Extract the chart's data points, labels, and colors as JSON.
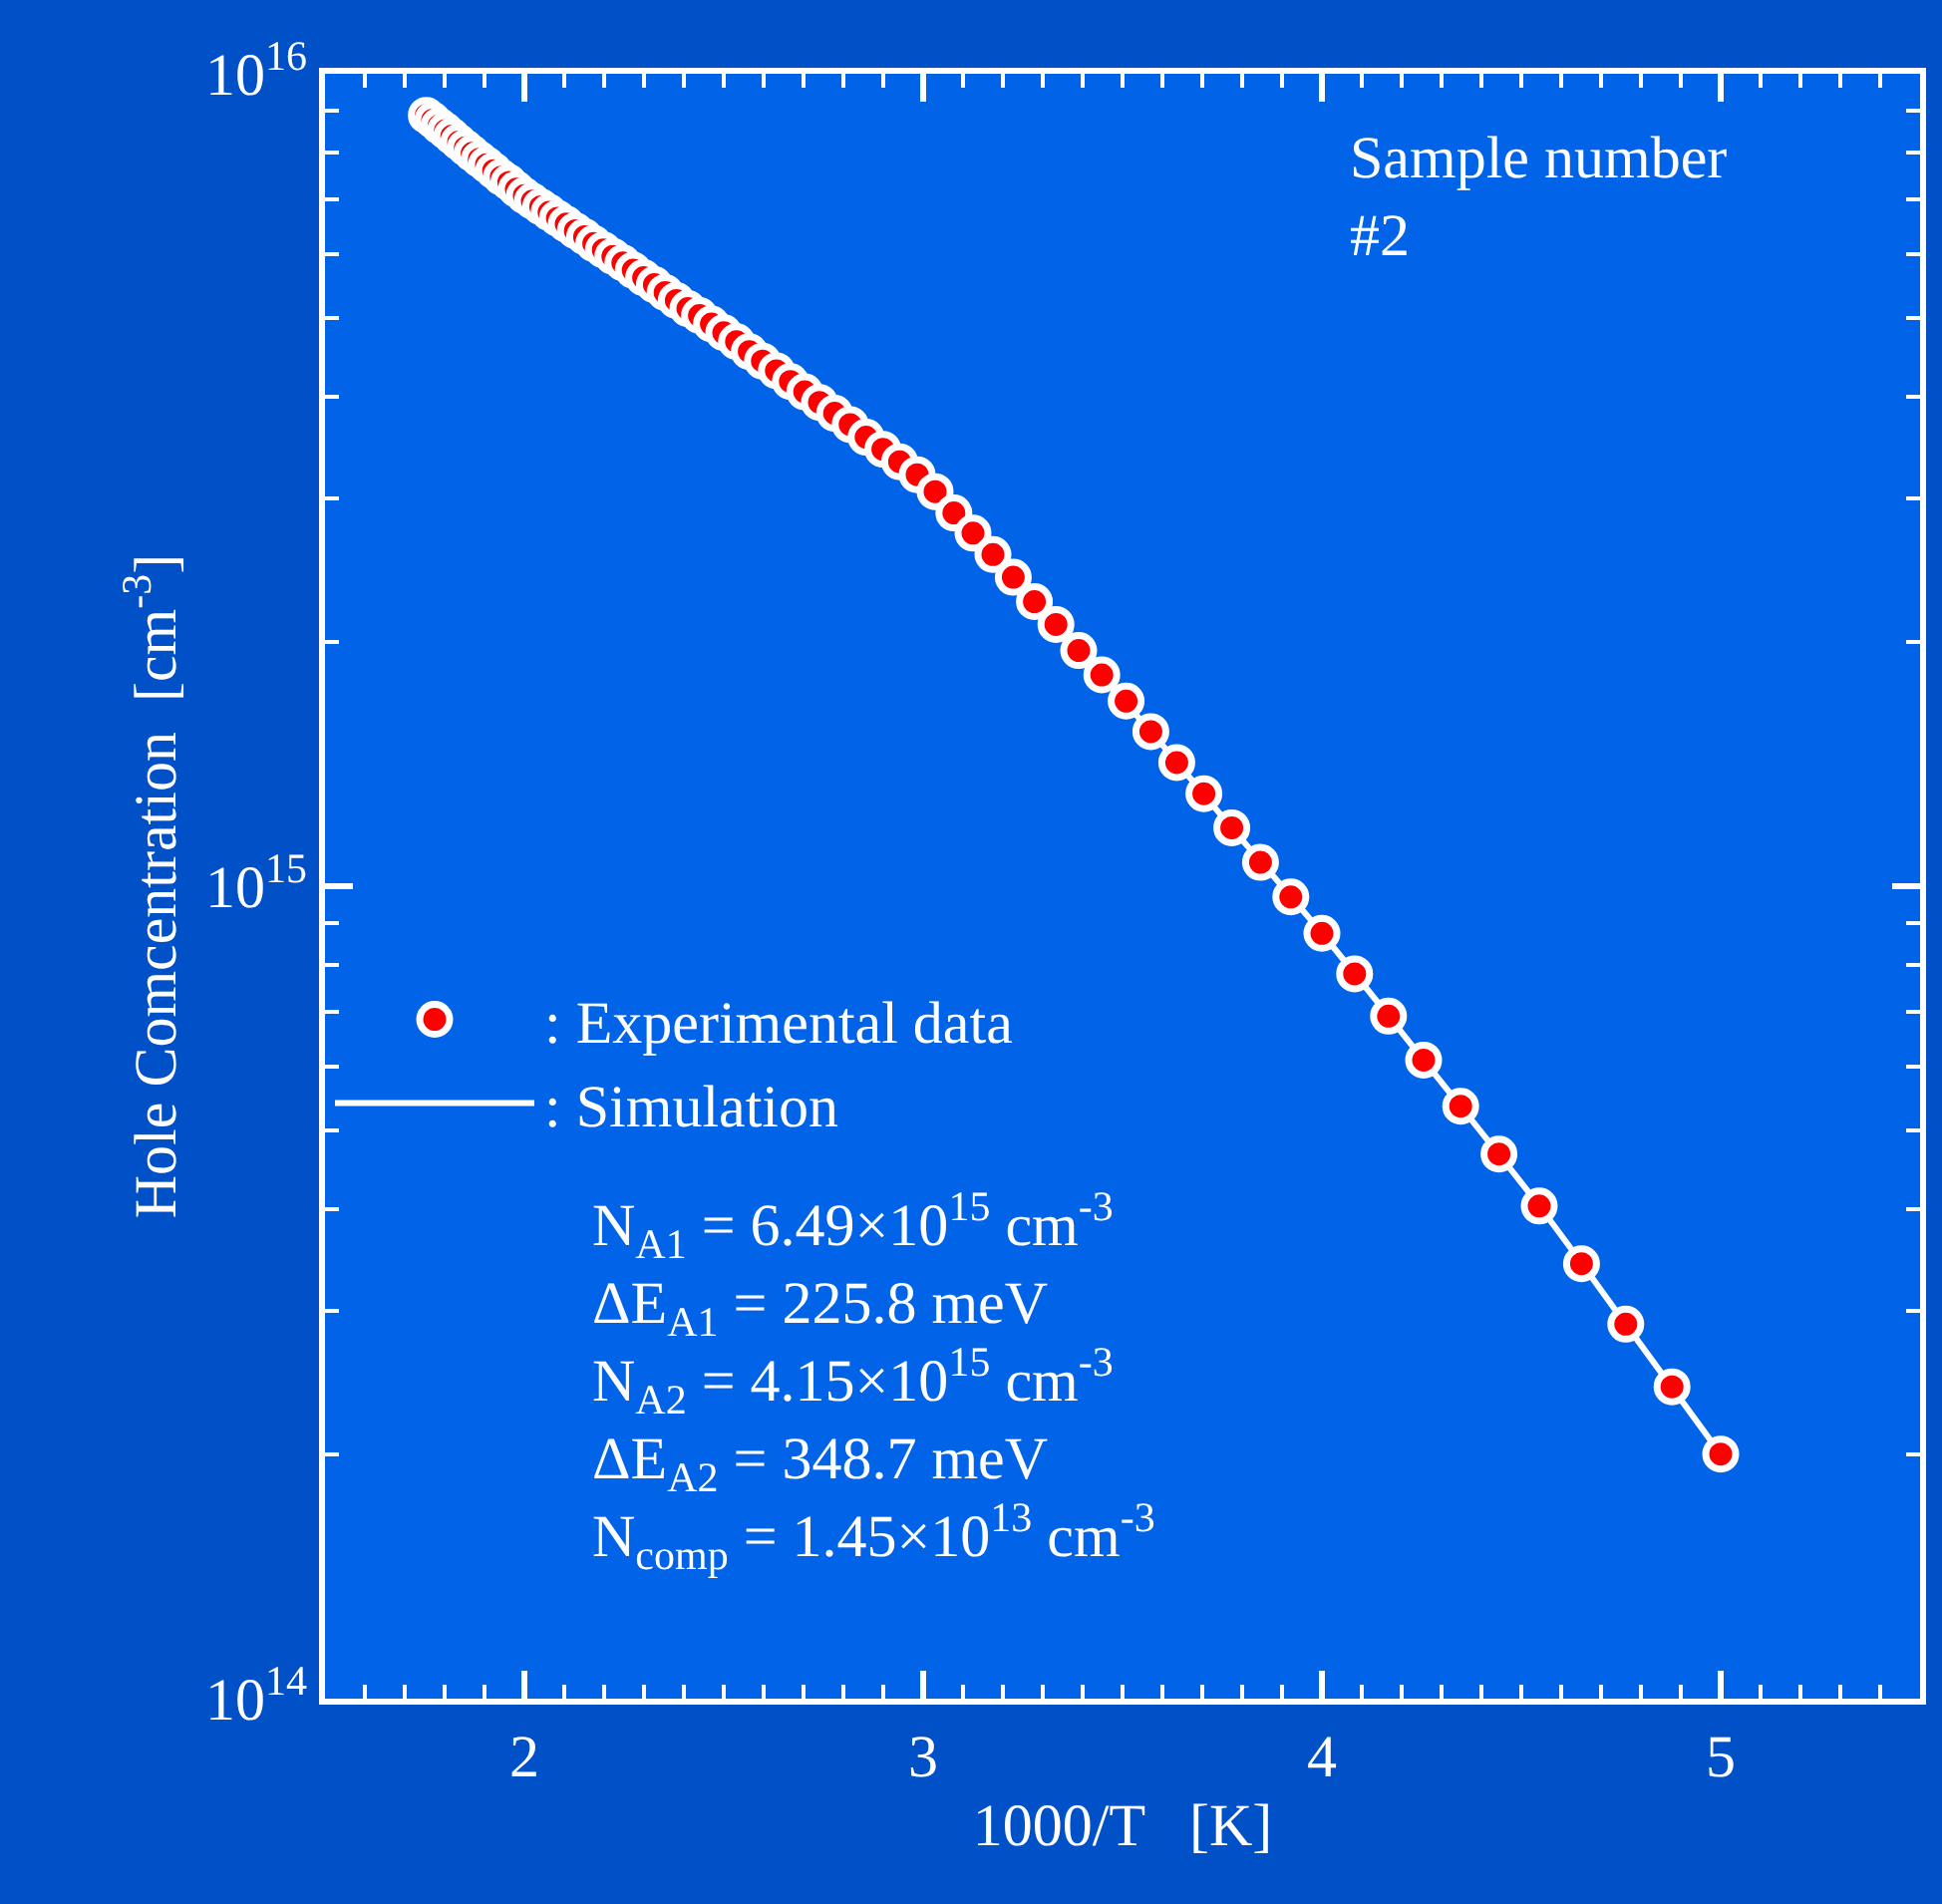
{
  "chart_data": {
    "type": "scatter",
    "xlabel": "1000/T   [K]",
    "ylabel": "Hole Comcentration  [cm$^{-3}$]",
    "log": "y",
    "xlim": [
      1.5,
      5.5
    ],
    "xticks": [
      2,
      3,
      4,
      5
    ],
    "ylim": [
      100000000000000.0,
      1e+16
    ],
    "yticks": [
      {
        "value": 100000000000000.0,
        "label": "10$^{14}$"
      },
      {
        "value": 1000000000000000.0,
        "label": "10$^{15}$"
      },
      {
        "value": 1e+16,
        "label": "10$^{16}$"
      }
    ],
    "grid": false,
    "legend": "left",
    "series": [
      {
        "name": ": Experimental data",
        "marker": "circle",
        "color": "#ff0000",
        "x": [
          1.754,
          1.77,
          1.786,
          1.802,
          1.818,
          1.835,
          1.852,
          1.869,
          1.887,
          1.905,
          1.923,
          1.942,
          1.961,
          1.98,
          2.0,
          2.02,
          2.041,
          2.062,
          2.083,
          2.105,
          2.128,
          2.151,
          2.174,
          2.198,
          2.222,
          2.247,
          2.273,
          2.299,
          2.326,
          2.353,
          2.381,
          2.41,
          2.439,
          2.469,
          2.5,
          2.532,
          2.564,
          2.597,
          2.632,
          2.667,
          2.703,
          2.74,
          2.778,
          2.817,
          2.857,
          2.899,
          2.941,
          2.985,
          3.03,
          3.077,
          3.125,
          3.175,
          3.226,
          3.279,
          3.333,
          3.39,
          3.448,
          3.509,
          3.571,
          3.636,
          3.704,
          3.774,
          3.846,
          3.922,
          4.0,
          4.082,
          4.167,
          4.255,
          4.348,
          4.444,
          4.545,
          4.651,
          4.762,
          4.878,
          5.0
        ],
        "values": [
          8890000000000000.0,
          8770000000000000.0,
          8630000000000000.0,
          8510000000000000.0,
          8380000000000000.0,
          8240000000000000.0,
          8110000000000000.0,
          7980000000000000.0,
          7850000000000000.0,
          7730000000000000.0,
          7600000000000000.0,
          7460000000000000.0,
          7350000000000000.0,
          7210000000000000.0,
          7080000000000000.0,
          6970000000000000.0,
          6860000000000000.0,
          6750000000000000.0,
          6640000000000000.0,
          6530000000000000.0,
          6410000000000000.0,
          6300000000000000.0,
          6180000000000000.0,
          6070000000000000.0,
          5960000000000000.0,
          5850000000000000.0,
          5730000000000000.0,
          5610000000000000.0,
          5500000000000000.0,
          5380000000000000.0,
          5260000000000000.0,
          5140000000000000.0,
          5040000000000000.0,
          4920000000000000.0,
          4800000000000000.0,
          4680000000000000.0,
          4550000000000000.0,
          4430000000000000.0,
          4310000000000000.0,
          4180000000000000.0,
          4060000000000000.0,
          3940000000000000.0,
          3820000000000000.0,
          3700000000000000.0,
          3570000000000000.0,
          3450000000000000.0,
          3330000000000000.0,
          3210000000000000.0,
          3060000000000000.0,
          2880000000000000.0,
          2720000000000000.0,
          2560000000000000.0,
          2400000000000000.0,
          2240000000000000.0,
          2100000000000000.0,
          1950000000000000.0,
          1820000000000000.0,
          1690000000000000.0,
          1550000000000000.0,
          1420000000000000.0,
          1300000000000000.0,
          1180000000000000.0,
          1070000000000000.0,
          970000000000000.0,
          875000000000000.0,
          780000000000000.0,
          692000000000000.0,
          611000000000000.0,
          536000000000000.0,
          468000000000000.0,
          404000000000000.0,
          343000000000000.0,
          289000000000000.0,
          242000000000000.0,
          200000000000000.0
        ]
      },
      {
        "name": ": Simulation",
        "type": "line",
        "marker": "none",
        "line_style": "solid",
        "color": "#ffffff",
        "x": [
          1.754,
          1.852,
          2.0,
          2.128,
          2.273,
          2.381,
          2.5,
          2.632,
          2.778,
          2.941,
          3.077,
          3.226,
          3.39,
          3.571,
          3.774,
          4.0,
          4.255,
          4.545,
          4.762,
          5.0
        ],
        "values": [
          8890000000000000.0,
          8110000000000000.0,
          7080000000000000.0,
          6410000000000000.0,
          5730000000000000.0,
          5260000000000000.0,
          4800000000000000.0,
          4310000000000000.0,
          3820000000000000.0,
          3330000000000000.0,
          2880000000000000.0,
          2400000000000000.0,
          1950000000000000.0,
          1550000000000000.0,
          1180000000000000.0,
          875000000000000.0,
          611000000000000.0,
          404000000000000.0,
          289000000000000.0,
          200000000000000.0
        ]
      }
    ],
    "annotations": [
      "Sample number\n#2",
      "N$_{A1}$ = 6.49×10$^{15}$ cm$^{-3}$",
      "ΔE$_{A1}$ = 225.8 meV",
      "N$_{A2}$ = 4.15×10$^{15}$ cm$^{-3}$",
      "ΔE$_{A2}$ = 348.7 meV",
      "N$_{comp}$ = 1.45×10$^{13}$ cm$^{-3}$"
    ]
  }
}
